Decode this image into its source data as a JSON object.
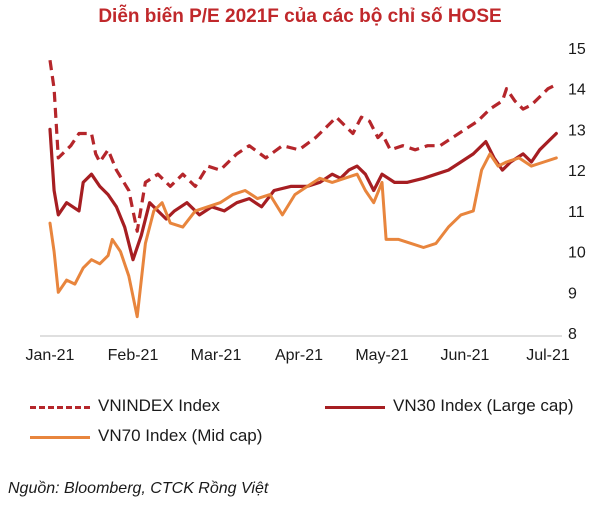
{
  "chart_data": {
    "type": "line",
    "title": "Diễn biến P/E 2021F của các bộ chỉ số HOSE",
    "x_labels": [
      "Jan-21",
      "Feb-21",
      "Mar-21",
      "Apr-21",
      "May-21",
      "Jun-21",
      "Jul-21"
    ],
    "y_ticks": [
      "8",
      "9",
      "10",
      "11",
      "12",
      "13",
      "14",
      "15"
    ],
    "ylim": [
      8,
      15
    ],
    "xlabel": "",
    "ylabel": "",
    "grid": false,
    "legend_position": "bottom",
    "series": [
      {
        "name": "VNINDEX Index",
        "color": "#b5262b",
        "style": "dashed",
        "points": [
          [
            0.0,
            14.7
          ],
          [
            0.1,
            14.0
          ],
          [
            0.2,
            12.3
          ],
          [
            0.5,
            12.6
          ],
          [
            0.7,
            12.9
          ],
          [
            1.0,
            12.9
          ],
          [
            1.1,
            12.4
          ],
          [
            1.2,
            12.2
          ],
          [
            1.4,
            12.5
          ],
          [
            1.6,
            12.0
          ],
          [
            1.9,
            11.5
          ],
          [
            2.1,
            10.5
          ],
          [
            2.3,
            11.7
          ],
          [
            2.6,
            11.9
          ],
          [
            2.9,
            11.6
          ],
          [
            3.2,
            11.9
          ],
          [
            3.5,
            11.6
          ],
          [
            3.8,
            12.1
          ],
          [
            4.1,
            12.0
          ],
          [
            4.5,
            12.4
          ],
          [
            4.8,
            12.6
          ],
          [
            5.2,
            12.3
          ],
          [
            5.6,
            12.6
          ],
          [
            6.0,
            12.5
          ],
          [
            6.4,
            12.8
          ],
          [
            6.7,
            13.1
          ],
          [
            6.9,
            13.3
          ],
          [
            7.1,
            13.1
          ],
          [
            7.3,
            12.9
          ],
          [
            7.5,
            13.3
          ],
          [
            7.7,
            13.2
          ],
          [
            7.9,
            12.8
          ],
          [
            8.0,
            12.9
          ],
          [
            8.2,
            12.5
          ],
          [
            8.5,
            12.6
          ],
          [
            8.8,
            12.5
          ],
          [
            9.1,
            12.6
          ],
          [
            9.4,
            12.6
          ],
          [
            9.7,
            12.8
          ],
          [
            10.0,
            13.0
          ],
          [
            10.3,
            13.2
          ],
          [
            10.6,
            13.5
          ],
          [
            10.9,
            13.7
          ],
          [
            11.0,
            14.0
          ],
          [
            11.2,
            13.7
          ],
          [
            11.4,
            13.5
          ],
          [
            11.6,
            13.6
          ],
          [
            11.8,
            13.8
          ],
          [
            12.0,
            14.0
          ],
          [
            12.2,
            14.1
          ]
        ]
      },
      {
        "name": "VN30 Index (Large cap)",
        "color": "#a61e22",
        "style": "solid",
        "points": [
          [
            0.0,
            13.0
          ],
          [
            0.1,
            11.5
          ],
          [
            0.2,
            10.9
          ],
          [
            0.4,
            11.2
          ],
          [
            0.7,
            11.0
          ],
          [
            0.8,
            11.7
          ],
          [
            1.0,
            11.9
          ],
          [
            1.2,
            11.6
          ],
          [
            1.4,
            11.4
          ],
          [
            1.6,
            11.1
          ],
          [
            1.8,
            10.6
          ],
          [
            2.0,
            9.8
          ],
          [
            2.2,
            10.4
          ],
          [
            2.4,
            11.2
          ],
          [
            2.6,
            11.0
          ],
          [
            2.8,
            10.8
          ],
          [
            3.0,
            11.0
          ],
          [
            3.3,
            11.2
          ],
          [
            3.6,
            10.9
          ],
          [
            3.9,
            11.1
          ],
          [
            4.2,
            11.0
          ],
          [
            4.5,
            11.2
          ],
          [
            4.8,
            11.3
          ],
          [
            5.1,
            11.1
          ],
          [
            5.4,
            11.5
          ],
          [
            5.8,
            11.6
          ],
          [
            6.2,
            11.6
          ],
          [
            6.5,
            11.7
          ],
          [
            6.8,
            11.9
          ],
          [
            7.0,
            11.8
          ],
          [
            7.2,
            12.0
          ],
          [
            7.4,
            12.1
          ],
          [
            7.6,
            11.9
          ],
          [
            7.8,
            11.5
          ],
          [
            8.0,
            11.9
          ],
          [
            8.3,
            11.7
          ],
          [
            8.6,
            11.7
          ],
          [
            9.0,
            11.8
          ],
          [
            9.3,
            11.9
          ],
          [
            9.6,
            12.0
          ],
          [
            9.9,
            12.2
          ],
          [
            10.2,
            12.4
          ],
          [
            10.5,
            12.7
          ],
          [
            10.7,
            12.3
          ],
          [
            10.9,
            12.0
          ],
          [
            11.1,
            12.2
          ],
          [
            11.4,
            12.4
          ],
          [
            11.6,
            12.2
          ],
          [
            11.8,
            12.5
          ],
          [
            12.0,
            12.7
          ],
          [
            12.2,
            12.9
          ]
        ]
      },
      {
        "name": "VN70 Index (Mid cap)",
        "color": "#e8853d",
        "style": "solid",
        "points": [
          [
            0.0,
            10.7
          ],
          [
            0.1,
            10.0
          ],
          [
            0.2,
            9.0
          ],
          [
            0.4,
            9.3
          ],
          [
            0.6,
            9.2
          ],
          [
            0.8,
            9.6
          ],
          [
            1.0,
            9.8
          ],
          [
            1.2,
            9.7
          ],
          [
            1.4,
            9.9
          ],
          [
            1.5,
            10.3
          ],
          [
            1.7,
            10.0
          ],
          [
            1.9,
            9.4
          ],
          [
            2.1,
            8.4
          ],
          [
            2.3,
            10.2
          ],
          [
            2.5,
            11.0
          ],
          [
            2.7,
            11.2
          ],
          [
            2.9,
            10.7
          ],
          [
            3.2,
            10.6
          ],
          [
            3.5,
            11.0
          ],
          [
            3.8,
            11.1
          ],
          [
            4.1,
            11.2
          ],
          [
            4.4,
            11.4
          ],
          [
            4.7,
            11.5
          ],
          [
            5.0,
            11.3
          ],
          [
            5.3,
            11.4
          ],
          [
            5.6,
            10.9
          ],
          [
            5.9,
            11.4
          ],
          [
            6.2,
            11.6
          ],
          [
            6.5,
            11.8
          ],
          [
            6.8,
            11.7
          ],
          [
            7.1,
            11.8
          ],
          [
            7.4,
            11.9
          ],
          [
            7.6,
            11.5
          ],
          [
            7.8,
            11.2
          ],
          [
            8.0,
            11.7
          ],
          [
            8.1,
            10.3
          ],
          [
            8.4,
            10.3
          ],
          [
            8.7,
            10.2
          ],
          [
            9.0,
            10.1
          ],
          [
            9.3,
            10.2
          ],
          [
            9.6,
            10.6
          ],
          [
            9.9,
            10.9
          ],
          [
            10.2,
            11.0
          ],
          [
            10.4,
            12.0
          ],
          [
            10.6,
            12.4
          ],
          [
            10.8,
            12.1
          ],
          [
            11.0,
            12.2
          ],
          [
            11.3,
            12.3
          ],
          [
            11.6,
            12.1
          ],
          [
            11.9,
            12.2
          ],
          [
            12.2,
            12.3
          ]
        ]
      }
    ]
  },
  "source": "Nguồn: Bloomberg, CTCK Rồng Việt"
}
